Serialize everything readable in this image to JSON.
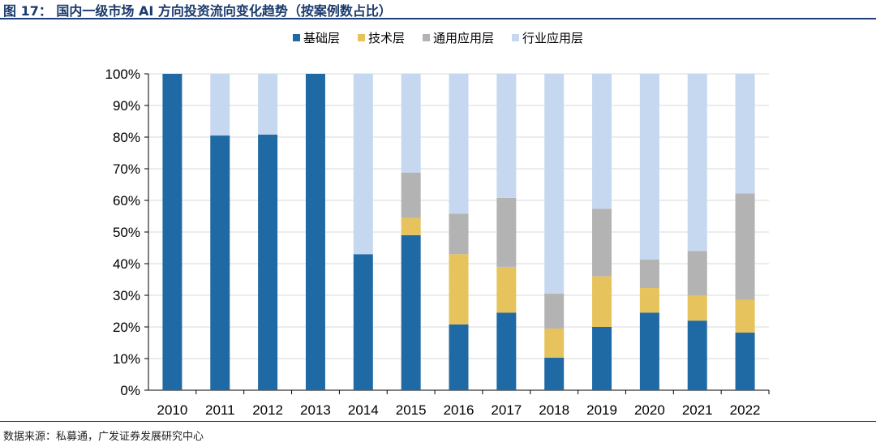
{
  "figure": {
    "title": "图 17： 国内一级市场 AI 方向投资流向变化趋势（按案例数占比）",
    "source": "数据来源：私募通，广发证券发展研究中心"
  },
  "legend": [
    {
      "name": "基础层",
      "color": "#1f6aa5"
    },
    {
      "name": "技术层",
      "color": "#e6c35c"
    },
    {
      "name": "通用应用层",
      "color": "#b3b3b3"
    },
    {
      "name": "行业应用层",
      "color": "#c6d8ef"
    }
  ],
  "chart_data": {
    "type": "bar",
    "stacked": true,
    "categories": [
      "2010",
      "2011",
      "2012",
      "2013",
      "2014",
      "2015",
      "2016",
      "2017",
      "2018",
      "2019",
      "2020",
      "2021",
      "2022"
    ],
    "series": [
      {
        "name": "基础层",
        "color": "#1f6aa5",
        "values": [
          100,
          80.5,
          80.8,
          100,
          43,
          49,
          20.8,
          24.5,
          10.3,
          20,
          24.5,
          22,
          18.2
        ]
      },
      {
        "name": "技术层",
        "color": "#e6c35c",
        "values": [
          0,
          0,
          0,
          0,
          0,
          5.5,
          22.2,
          14.5,
          9.2,
          16,
          7.8,
          8,
          10.3
        ]
      },
      {
        "name": "通用应用层",
        "color": "#b3b3b3",
        "values": [
          0,
          0,
          0,
          0,
          0,
          14.3,
          12.8,
          21.8,
          11,
          21.3,
          9,
          14,
          33.7
        ]
      },
      {
        "name": "行业应用层",
        "color": "#c6d8ef",
        "values": [
          0,
          19.5,
          19.2,
          0,
          57,
          31.2,
          44.2,
          39.2,
          69.5,
          42.7,
          58.7,
          56,
          37.8
        ]
      }
    ],
    "y_ticks": [
      "0%",
      "10%",
      "20%",
      "30%",
      "40%",
      "50%",
      "60%",
      "70%",
      "80%",
      "90%",
      "100%"
    ],
    "ylim": [
      0,
      100
    ],
    "grid": true,
    "legend_position": "top"
  }
}
